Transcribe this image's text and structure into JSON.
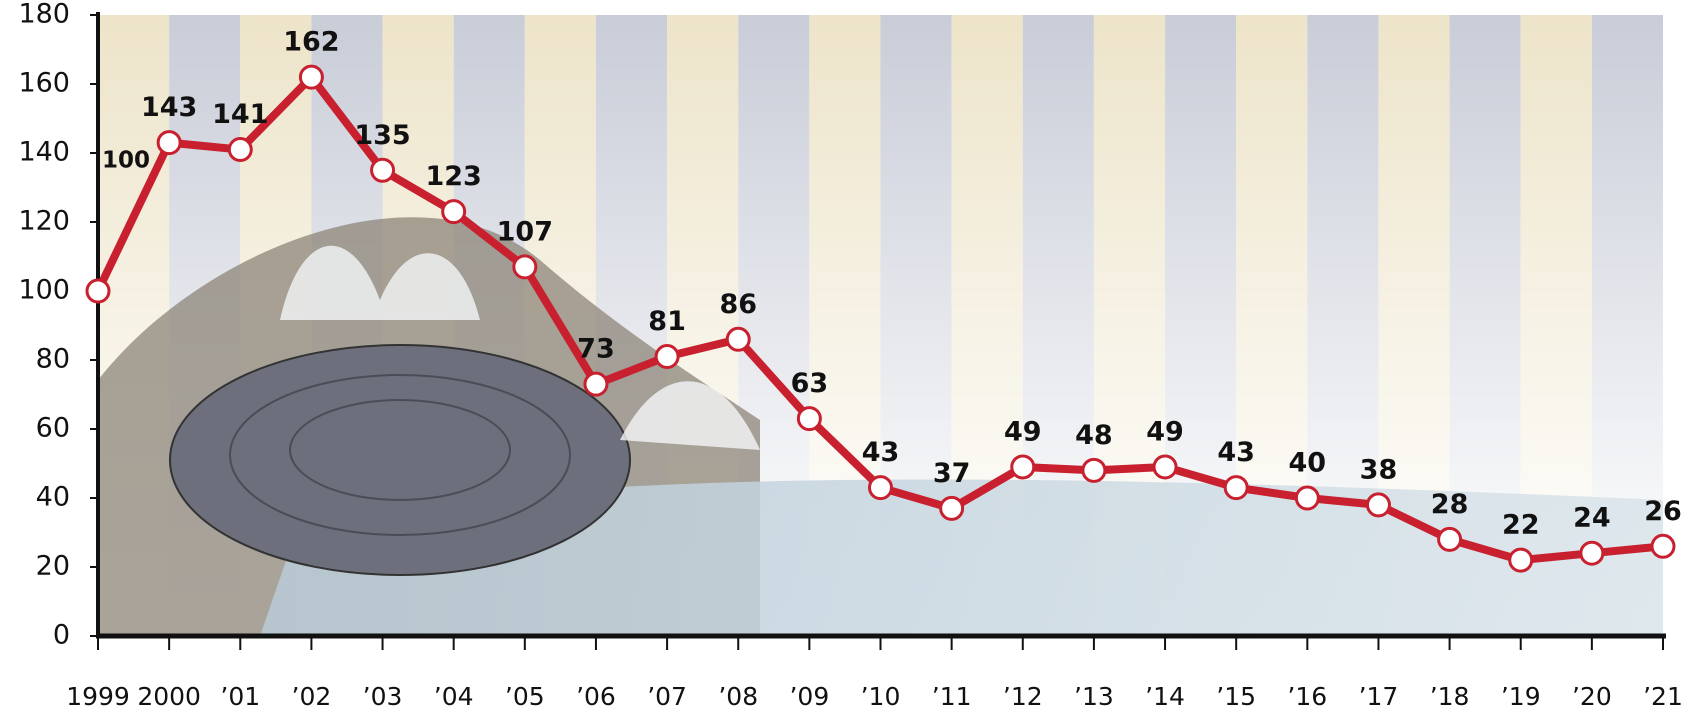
{
  "chart_data": {
    "type": "line",
    "categories": [
      "1999",
      "2000",
      "’01",
      "’02",
      "’03",
      "’04",
      "’05",
      "’06",
      "’07",
      "’08",
      "’09",
      "’10",
      "’11",
      "’12",
      "’13",
      "’14",
      "’15",
      "’16",
      "’17",
      "’18",
      "’19",
      "’20",
      "’21"
    ],
    "values": [
      100,
      143,
      141,
      162,
      135,
      123,
      107,
      73,
      81,
      86,
      63,
      43,
      37,
      49,
      48,
      49,
      43,
      40,
      38,
      28,
      22,
      24,
      26
    ],
    "color": "#c8202f",
    "ylim": [
      0,
      180
    ],
    "yticks": [
      0,
      20,
      40,
      60,
      80,
      100,
      120,
      140,
      160,
      180
    ]
  }
}
